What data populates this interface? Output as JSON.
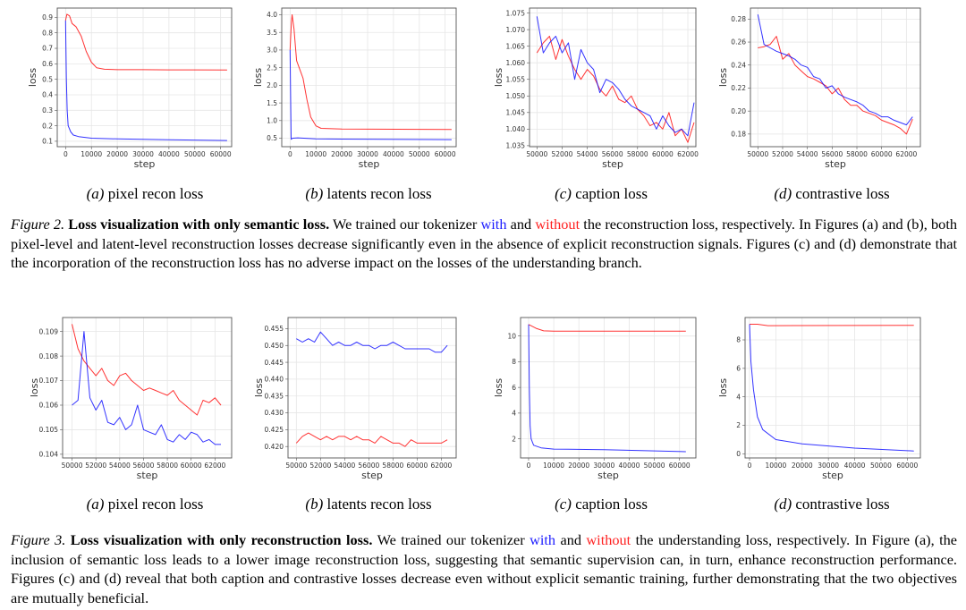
{
  "figure2": {
    "label": "Figure 2.",
    "title": "Loss visualization with only semantic loss.",
    "text_1": " We trained our tokenizer ",
    "with": "with",
    "text_2": " and ",
    "without": "without",
    "text_3": " the reconstruction loss, respectively. In Figures (a) and (b), both pixel-level and latent-level reconstruction losses decrease significantly even in the absence of explicit reconstruction signals. Figures (c) and (d) demonstrate that the incorporation of the reconstruction loss has no adverse impact on the losses of the understanding branch."
  },
  "figure3": {
    "label": "Figure 3.",
    "title": "Loss visualization with only reconstruction loss.",
    "text_1": " We trained our tokenizer ",
    "with": "with",
    "text_2": " and ",
    "without": "without",
    "text_3": " the understanding loss, respectively. In Figure (a), the inclusion of semantic loss leads to a lower image reconstruction loss, suggesting that semantic supervision can, in turn, enhance reconstruction performance. Figures (c) and (d) reveal that both caption and contrastive losses decrease even without explicit semantic training, further demonstrating that the two objectives are mutually beneficial."
  },
  "colors": {
    "with": "#0000ff",
    "without": "#ff0000"
  },
  "chart_data": [
    {
      "type": "line",
      "figure": "Figure 2",
      "label": "(a)",
      "title": "pixel recon loss",
      "xlabel": "step",
      "ylabel": "loss",
      "grid": true,
      "xlim": [
        -3230,
        64270
      ],
      "ylim": [
        0.065,
        0.96
      ],
      "xticks": [
        0,
        10000,
        20000,
        30000,
        40000,
        50000,
        60000
      ],
      "yticks": [
        0.1,
        0.2,
        0.3,
        0.4,
        0.5,
        0.6,
        0.7,
        0.8,
        0.9
      ],
      "series": [
        {
          "name": "without",
          "color": "#ff0000",
          "x": [
            0,
            500,
            1500,
            2500,
            4000,
            6000,
            8000,
            10000,
            12000,
            15000,
            20000,
            30000,
            40000,
            50000,
            62500
          ],
          "y": [
            0.88,
            0.92,
            0.91,
            0.86,
            0.84,
            0.78,
            0.68,
            0.61,
            0.575,
            0.565,
            0.562,
            0.562,
            0.561,
            0.561,
            0.56
          ]
        },
        {
          "name": "with",
          "color": "#0000ff",
          "x": [
            0,
            300,
            600,
            1000,
            2000,
            3000,
            5000,
            10000,
            20000,
            40000,
            62500
          ],
          "y": [
            0.88,
            0.5,
            0.3,
            0.2,
            0.16,
            0.14,
            0.13,
            0.12,
            0.115,
            0.11,
            0.105
          ]
        }
      ]
    },
    {
      "type": "line",
      "figure": "Figure 2",
      "label": "(b)",
      "title": "latents recon loss",
      "xlabel": "step",
      "ylabel": "loss",
      "grid": true,
      "xlim": [
        -3230,
        64270
      ],
      "ylim": [
        0.26,
        4.19
      ],
      "xticks": [
        0,
        10000,
        20000,
        30000,
        40000,
        50000,
        60000
      ],
      "yticks": [
        0.5,
        1.0,
        1.5,
        2.0,
        2.5,
        3.0,
        3.5,
        4.0
      ],
      "series": [
        {
          "name": "without",
          "color": "#ff0000",
          "x": [
            0,
            500,
            800,
            1500,
            2500,
            4000,
            5000,
            6500,
            8000,
            10000,
            12000,
            20000,
            62500
          ],
          "y": [
            3.0,
            3.8,
            4.0,
            3.6,
            2.7,
            2.4,
            2.2,
            1.6,
            1.1,
            0.85,
            0.78,
            0.76,
            0.75
          ]
        },
        {
          "name": "with",
          "color": "#0000ff",
          "x": [
            0,
            400,
            1000,
            3000,
            10000,
            62500
          ],
          "y": [
            3.0,
            0.47,
            0.5,
            0.51,
            0.48,
            0.46
          ]
        }
      ]
    },
    {
      "type": "line",
      "figure": "Figure 2",
      "label": "(c)",
      "title": "caption loss",
      "xlabel": "step",
      "ylabel": "loss",
      "grid": true,
      "xlim": [
        49407,
        62640
      ],
      "ylim": [
        1.0347,
        1.0765
      ],
      "xticks": [
        50000,
        52000,
        54000,
        56000,
        58000,
        60000,
        62000
      ],
      "yticks": [
        1.035,
        1.04,
        1.045,
        1.05,
        1.055,
        1.06,
        1.065,
        1.07,
        1.075
      ],
      "x": [
        50000,
        50500,
        51000,
        51500,
        52000,
        52500,
        53000,
        53500,
        54000,
        54500,
        55000,
        55500,
        56000,
        56500,
        57000,
        57500,
        58000,
        58500,
        59000,
        59500,
        60000,
        60500,
        61000,
        61500,
        62000,
        62500
      ],
      "series": [
        {
          "name": "without",
          "color": "#ff0000",
          "y": [
            1.063,
            1.066,
            1.068,
            1.061,
            1.067,
            1.062,
            1.058,
            1.055,
            1.058,
            1.056,
            1.052,
            1.05,
            1.053,
            1.049,
            1.048,
            1.05,
            1.046,
            1.044,
            1.041,
            1.042,
            1.04,
            1.045,
            1.038,
            1.04,
            1.036,
            1.042
          ]
        },
        {
          "name": "with",
          "color": "#0000ff",
          "y": [
            1.074,
            1.063,
            1.066,
            1.068,
            1.063,
            1.066,
            1.055,
            1.064,
            1.06,
            1.058,
            1.051,
            1.055,
            1.054,
            1.052,
            1.049,
            1.047,
            1.046,
            1.045,
            1.044,
            1.04,
            1.044,
            1.041,
            1.039,
            1.04,
            1.038,
            1.048
          ]
        }
      ]
    },
    {
      "type": "line",
      "figure": "Figure 2",
      "label": "(d)",
      "title": "contrastive loss",
      "xlabel": "step",
      "ylabel": "loss",
      "grid": true,
      "xlim": [
        49400,
        63130
      ],
      "ylim": [
        0.169,
        0.2896
      ],
      "xticks": [
        50000,
        52000,
        54000,
        56000,
        58000,
        60000,
        62000
      ],
      "yticks": [
        0.18,
        0.2,
        0.22,
        0.24,
        0.26,
        0.28
      ],
      "x": [
        50000,
        50500,
        51000,
        51500,
        52000,
        52500,
        53000,
        53500,
        54000,
        54500,
        55000,
        55500,
        56000,
        56500,
        57000,
        57500,
        58000,
        58500,
        59000,
        59500,
        60000,
        60500,
        61000,
        61500,
        62000,
        62500
      ],
      "series": [
        {
          "name": "without",
          "color": "#ff0000",
          "y": [
            0.255,
            0.256,
            0.258,
            0.265,
            0.245,
            0.25,
            0.24,
            0.235,
            0.23,
            0.228,
            0.225,
            0.222,
            0.215,
            0.22,
            0.21,
            0.205,
            0.205,
            0.2,
            0.198,
            0.196,
            0.192,
            0.19,
            0.188,
            0.185,
            0.18,
            0.193
          ]
        },
        {
          "name": "with",
          "color": "#0000ff",
          "y": [
            0.284,
            0.258,
            0.255,
            0.252,
            0.25,
            0.248,
            0.245,
            0.24,
            0.238,
            0.23,
            0.228,
            0.22,
            0.222,
            0.215,
            0.212,
            0.21,
            0.208,
            0.205,
            0.2,
            0.198,
            0.195,
            0.195,
            0.192,
            0.19,
            0.188,
            0.195
          ]
        }
      ]
    },
    {
      "type": "line",
      "figure": "Figure 3",
      "label": "(a)",
      "title": "pixel recon loss",
      "xlabel": "step",
      "ylabel": "loss",
      "grid": true,
      "xlim": [
        49208,
        63400
      ],
      "ylim": [
        0.10385,
        0.10957
      ],
      "xticks": [
        50000,
        52000,
        54000,
        56000,
        58000,
        60000,
        62000
      ],
      "yticks": [
        0.104,
        0.105,
        0.106,
        0.107,
        0.108,
        0.109
      ],
      "x": [
        50000,
        50500,
        51000,
        51500,
        52000,
        52500,
        53000,
        53500,
        54000,
        54500,
        55000,
        55500,
        56000,
        56500,
        57000,
        57500,
        58000,
        58500,
        59000,
        59500,
        60000,
        60500,
        61000,
        61500,
        62000,
        62500
      ],
      "series": [
        {
          "name": "without",
          "color": "#ff0000",
          "y": [
            0.1093,
            0.1083,
            0.1078,
            0.1075,
            0.1072,
            0.1075,
            0.107,
            0.1068,
            0.1072,
            0.1073,
            0.107,
            0.1068,
            0.1066,
            0.1067,
            0.1066,
            0.1065,
            0.1064,
            0.1066,
            0.1062,
            0.106,
            0.1058,
            0.1056,
            0.1062,
            0.1061,
            0.1063,
            0.106
          ]
        },
        {
          "name": "with",
          "color": "#0000ff",
          "y": [
            0.106,
            0.1062,
            0.109,
            0.1063,
            0.1058,
            0.1062,
            0.1053,
            0.1052,
            0.1055,
            0.105,
            0.1052,
            0.106,
            0.105,
            0.1049,
            0.1048,
            0.1052,
            0.1046,
            0.1045,
            0.1048,
            0.1046,
            0.1049,
            0.1048,
            0.1045,
            0.1046,
            0.1044,
            0.1044
          ]
        }
      ]
    },
    {
      "type": "line",
      "figure": "Figure 3",
      "label": "(b)",
      "title": "latents recon loss",
      "xlabel": "step",
      "ylabel": "loss",
      "grid": true,
      "xlim": [
        49310,
        63230
      ],
      "ylim": [
        0.4166,
        0.4583
      ],
      "xticks": [
        50000,
        52000,
        54000,
        56000,
        58000,
        60000,
        62000
      ],
      "yticks": [
        0.42,
        0.425,
        0.43,
        0.435,
        0.44,
        0.445,
        0.45,
        0.455
      ],
      "x": [
        50000,
        50500,
        51000,
        51500,
        52000,
        52500,
        53000,
        53500,
        54000,
        54500,
        55000,
        55500,
        56000,
        56500,
        57000,
        57500,
        58000,
        58500,
        59000,
        59500,
        60000,
        60500,
        61000,
        61500,
        62000,
        62500
      ],
      "series": [
        {
          "name": "without",
          "color": "#ff0000",
          "y": [
            0.421,
            0.423,
            0.424,
            0.423,
            0.422,
            0.423,
            0.422,
            0.423,
            0.423,
            0.422,
            0.423,
            0.422,
            0.422,
            0.421,
            0.423,
            0.422,
            0.421,
            0.421,
            0.42,
            0.422,
            0.421,
            0.421,
            0.421,
            0.421,
            0.421,
            0.422
          ]
        },
        {
          "name": "with",
          "color": "#0000ff",
          "y": [
            0.452,
            0.451,
            0.452,
            0.451,
            0.454,
            0.452,
            0.45,
            0.451,
            0.45,
            0.45,
            0.451,
            0.45,
            0.45,
            0.449,
            0.45,
            0.45,
            0.451,
            0.45,
            0.449,
            0.449,
            0.449,
            0.449,
            0.449,
            0.448,
            0.448,
            0.45
          ]
        }
      ]
    },
    {
      "type": "line",
      "figure": "Figure 3",
      "label": "(c)",
      "title": "caption loss",
      "xlabel": "step",
      "ylabel": "loss",
      "grid": true,
      "xlim": [
        -3190,
        66500
      ],
      "ylim": [
        0.51,
        11.44
      ],
      "xticks": [
        0,
        10000,
        20000,
        30000,
        40000,
        50000,
        60000
      ],
      "yticks": [
        2,
        4,
        6,
        8,
        10
      ],
      "series": [
        {
          "name": "without",
          "color": "#ff0000",
          "x": [
            0,
            1000,
            3000,
            6000,
            10000,
            62500
          ],
          "y": [
            10.9,
            10.8,
            10.6,
            10.4,
            10.38,
            10.38
          ]
        },
        {
          "name": "with",
          "color": "#0000ff",
          "x": [
            0,
            300,
            600,
            1000,
            2000,
            5000,
            10000,
            30000,
            62500
          ],
          "y": [
            10.9,
            6,
            3,
            2,
            1.5,
            1.3,
            1.2,
            1.15,
            1.0
          ]
        }
      ]
    },
    {
      "type": "line",
      "figure": "Figure 3",
      "label": "(d)",
      "title": "contrastive loss",
      "xlabel": "step",
      "ylabel": "loss",
      "grid": true,
      "xlim": [
        -1700,
        65000
      ],
      "ylim": [
        -0.29,
        9.57
      ],
      "xticks": [
        0,
        10000,
        20000,
        30000,
        40000,
        50000,
        60000
      ],
      "yticks": [
        0,
        2,
        4,
        6,
        8
      ],
      "series": [
        {
          "name": "without",
          "color": "#ff0000",
          "x": [
            0,
            3000,
            7000,
            62500
          ],
          "y": [
            9.1,
            9.1,
            9.0,
            9.02
          ]
        },
        {
          "name": "with",
          "color": "#0000ff",
          "x": [
            0,
            500,
            1500,
            3000,
            5000,
            10000,
            20000,
            40000,
            62500
          ],
          "y": [
            9.1,
            6.5,
            4.5,
            2.6,
            1.7,
            1.0,
            0.7,
            0.4,
            0.2
          ]
        }
      ]
    }
  ]
}
